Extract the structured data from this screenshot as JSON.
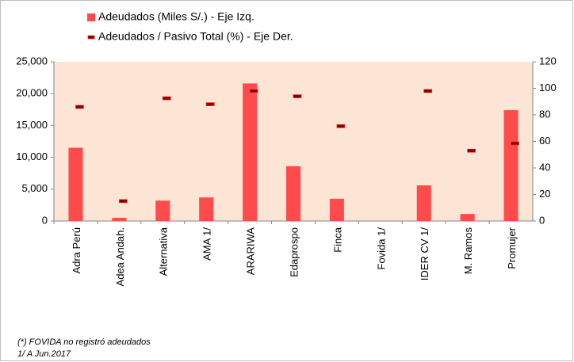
{
  "chart_data": {
    "type": "bar",
    "categories": [
      "Adra Perú",
      "Adea Andah.",
      "Alternativa",
      "AMA 1/",
      "ARARIWA",
      "Edaprospo",
      "Finca",
      "Fovida 1/",
      "IDER CV 1/",
      "M. Ramos",
      "Promujer"
    ],
    "series": [
      {
        "name": "Adeudados (Miles S/.) - Eje Izq.",
        "color": "#ff4b4b",
        "type": "bar",
        "values": [
          11500,
          500,
          3200,
          3700,
          21600,
          8600,
          3500,
          null,
          5600,
          1100,
          17400
        ]
      },
      {
        "name": "Adeudados / Pasivo Total (%) - Eje Der.",
        "color": "#7a0000",
        "type": "marker",
        "axis": "y2",
        "values": [
          86,
          15,
          92.5,
          88,
          98,
          94,
          71.5,
          null,
          98,
          53,
          58.5
        ]
      }
    ],
    "ylim": [
      0,
      25000
    ],
    "yticks": [
      0,
      {
        "value": 5000,
        "label": "5,000"
      },
      {
        "value": 10000,
        "label": "10,000"
      },
      {
        "value": 15000,
        "label": "15,000"
      },
      {
        "value": 20000,
        "label": "20,000"
      },
      {
        "value": 25000,
        "label": "25,000"
      }
    ],
    "y2lim": [
      0,
      120
    ],
    "y2ticks": [
      0,
      20,
      40,
      60,
      80,
      100,
      120
    ],
    "plot_background": "#fde5d5",
    "notes": [
      "(*) FOVIDA no registró adeudados",
      "1/ A Jun.2017"
    ]
  }
}
